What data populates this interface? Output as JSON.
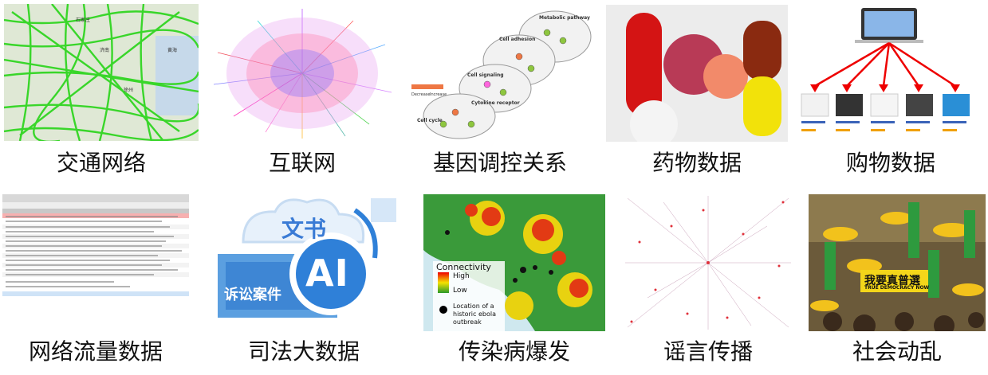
{
  "captions": [
    "交通网络",
    "互联网",
    "基因调控关系",
    "药物数据",
    "购物数据",
    "网络流量数据",
    "司法大数据",
    "传染病爆发",
    "谣言传播",
    "社会动乱"
  ],
  "tiles": {
    "judicial": {
      "word1": "文书",
      "word2": "诉讼案件",
      "badge": "AI"
    },
    "ebola": {
      "legend_title": "Connectivity",
      "high": "High",
      "low": "Low",
      "location_label": "Location of a historic ebola outbreak"
    },
    "protest": {
      "banner": "我要真普選",
      "banner_sub": "TRUE DEMOCRACY NOW"
    }
  }
}
